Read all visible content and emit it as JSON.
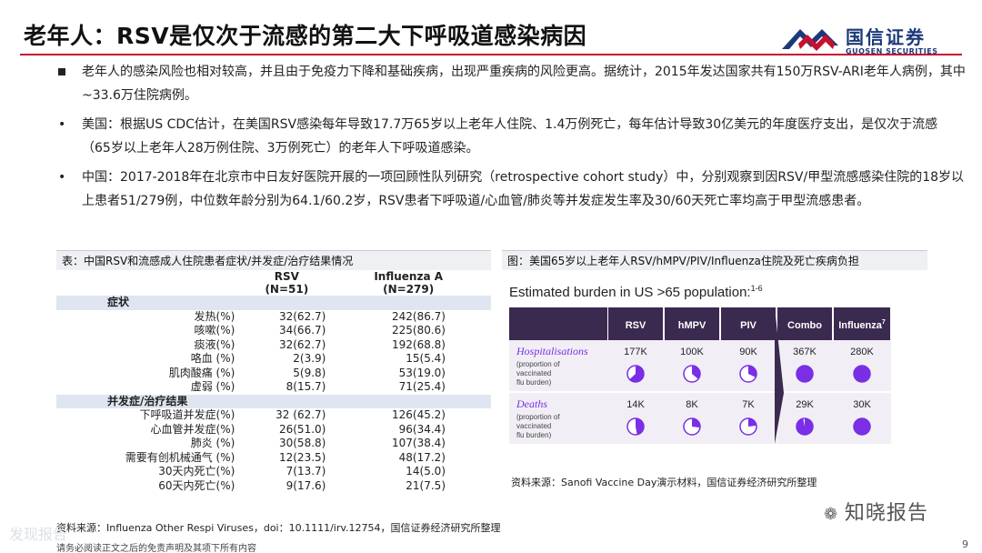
{
  "header": {
    "title": "老年人：RSV是仅次于流感的第二大下呼吸道感染病因",
    "logo_cn": "国信证券",
    "logo_en": "GUOSEN SECURITIES"
  },
  "bullets": [
    {
      "type": "square",
      "text": "老年人的感染风险也相对较高，并且由于免疫力下降和基础疾病，出现严重疾病的风险更高。据统计，2015年发达国家共有150万RSV-ARI老年人病例，其中~33.6万住院病例。"
    },
    {
      "type": "dot",
      "text": "美国：根据US  CDC估计，在美国RSV感染每年导致17.7万65岁以上老年人住院、1.4万例死亡，每年估计导致30亿美元的年度医疗支出，是仅次于流感（65岁以上老年人28万例住院、3万例死亡）的老年人下呼吸道感染。"
    },
    {
      "type": "dot",
      "text": "中国：2017-2018年在北京市中日友好医院开展的一项回顾性队列研究（retrospective  cohort  study）中，分别观察到因RSV/甲型流感感染住院的18岁以上患者51/279例，中位数年龄分别为64.1/60.2岁，RSV患者下呼吸道/心血管/肺炎等并发症发生率及30/60天死亡率均高于甲型流感患者。"
    }
  ],
  "table_panel": {
    "caption": "表：中国RSV和流感成人住院患者症状/并发症/治疗结果情况",
    "col_rsv": "RSV",
    "col_rsv_n": "(N=51)",
    "col_flu": "Influenza A",
    "col_flu_n": "(N=279)",
    "section1": "症状",
    "rows1": [
      [
        "发热(%)",
        "32(62.7)",
        "242(86.7)"
      ],
      [
        "咳嗽(%)",
        "34(66.7)",
        "225(80.6)"
      ],
      [
        "痰液(%)",
        "32(62.7)",
        "192(68.8)"
      ],
      [
        "咯血 (%)",
        "2(3.9)",
        "15(5.4)"
      ],
      [
        "肌肉酸痛 (%)",
        "5(9.8)",
        "53(19.0)"
      ],
      [
        "虚弱 (%)",
        "8(15.7)",
        "71(25.4)"
      ]
    ],
    "section2": "并发症/治疗结果",
    "rows2": [
      [
        "下呼吸道并发症(%)",
        "32 (62.7)",
        "126(45.2)"
      ],
      [
        "心血管并发症(%)",
        "26(51.0)",
        "96(34.4)"
      ],
      [
        "肺炎 (%)",
        "30(58.8)",
        "107(38.4)"
      ],
      [
        "需要有创机械通气 (%)",
        "12(23.5)",
        "48(17.2)"
      ],
      [
        "30天内死亡(%)",
        "7(13.7)",
        "14(5.0)"
      ],
      [
        "60天内死亡(%)",
        "9(17.6)",
        "21(7.5)"
      ]
    ],
    "source": "资料来源：Influenza Other Respi Viruses，doi：10.1111/irv.12754，国信证券经济研究所整理"
  },
  "figure_panel": {
    "caption": "图：美国65岁以上老年人RSV/hMPV/PIV/Influenza住院及死亡疾病负担",
    "heading": "Estimated burden in US >65 population:",
    "heading_sup": "1-6",
    "columns": [
      "RSV",
      "hMPV",
      "PIV",
      "Combo",
      "Influenza"
    ],
    "influenza_sup": "7",
    "rows": [
      {
        "label": "Hospitalisations",
        "sublabel": [
          "(proportion of",
          "vaccinated",
          "flu burden)"
        ],
        "values": [
          "177K",
          "100K",
          "90K",
          "367K",
          "280K"
        ],
        "fractions": [
          0.63,
          0.36,
          0.32,
          1.0,
          1.0
        ]
      },
      {
        "label": "Deaths",
        "sublabel": [
          "(proportion of",
          "vaccinated",
          "flu burden)"
        ],
        "values": [
          "14K",
          "8K",
          "7K",
          "29K",
          "30K"
        ],
        "fractions": [
          0.47,
          0.27,
          0.23,
          0.97,
          1.0
        ]
      }
    ],
    "source": "资料来源：Sanofi Vaccine Day演示材料，国信证券经济研究所整理"
  },
  "footer": {
    "disclaimer": "请务必阅读正文之后的免责声明及其项下所有内容",
    "page": "9",
    "watermark_left": "发现报告",
    "watermark_right": "知晓报告"
  },
  "colors": {
    "red": "#c8102e",
    "navy": "#1c3a7a",
    "purple": "#7a2ee6",
    "header_dark": "#3b2a4f"
  }
}
